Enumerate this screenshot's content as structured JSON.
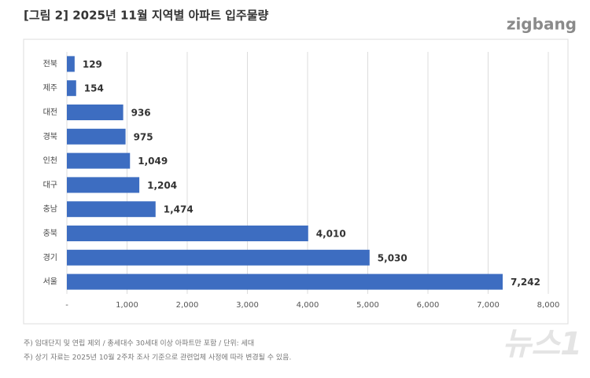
{
  "header": {
    "title": "[그림 2] 2025년 11월 지역별 아파트 입주물량",
    "logo": "zigbang"
  },
  "chart_data": {
    "type": "bar",
    "orientation": "horizontal",
    "color": "#3d6dc1",
    "grid": true,
    "categories": [
      "전북",
      "제주",
      "대전",
      "경북",
      "인천",
      "대구",
      "충남",
      "충북",
      "경기",
      "서울"
    ],
    "values": [
      129,
      154,
      936,
      975,
      1049,
      1204,
      1474,
      4010,
      5030,
      7242
    ],
    "value_labels": [
      "129",
      "154",
      "936",
      "975",
      "1,049",
      "1,204",
      "1,474",
      "4,010",
      "5,030",
      "7,242"
    ],
    "xlim": [
      0,
      8000
    ],
    "xticks": [
      {
        "value": 0,
        "label": "-"
      },
      {
        "value": 1000,
        "label": "1,000"
      },
      {
        "value": 2000,
        "label": "2,000"
      },
      {
        "value": 3000,
        "label": "3,000"
      },
      {
        "value": 4000,
        "label": "4,000"
      },
      {
        "value": 5000,
        "label": "5,000"
      },
      {
        "value": 6000,
        "label": "6,000"
      },
      {
        "value": 7000,
        "label": "7,000"
      },
      {
        "value": 8000,
        "label": "8,000"
      }
    ]
  },
  "notes": [
    "주) 임대단지 및 연립 제외 / 총세대수 30세대 이상 아파트만 포함 / 단위: 세대",
    "주) 상기 자료는 2025년 10월 2주차 조사 기준으로 관련업체 사정에 따라 변경될 수 있음."
  ],
  "watermark": "뉴스1"
}
